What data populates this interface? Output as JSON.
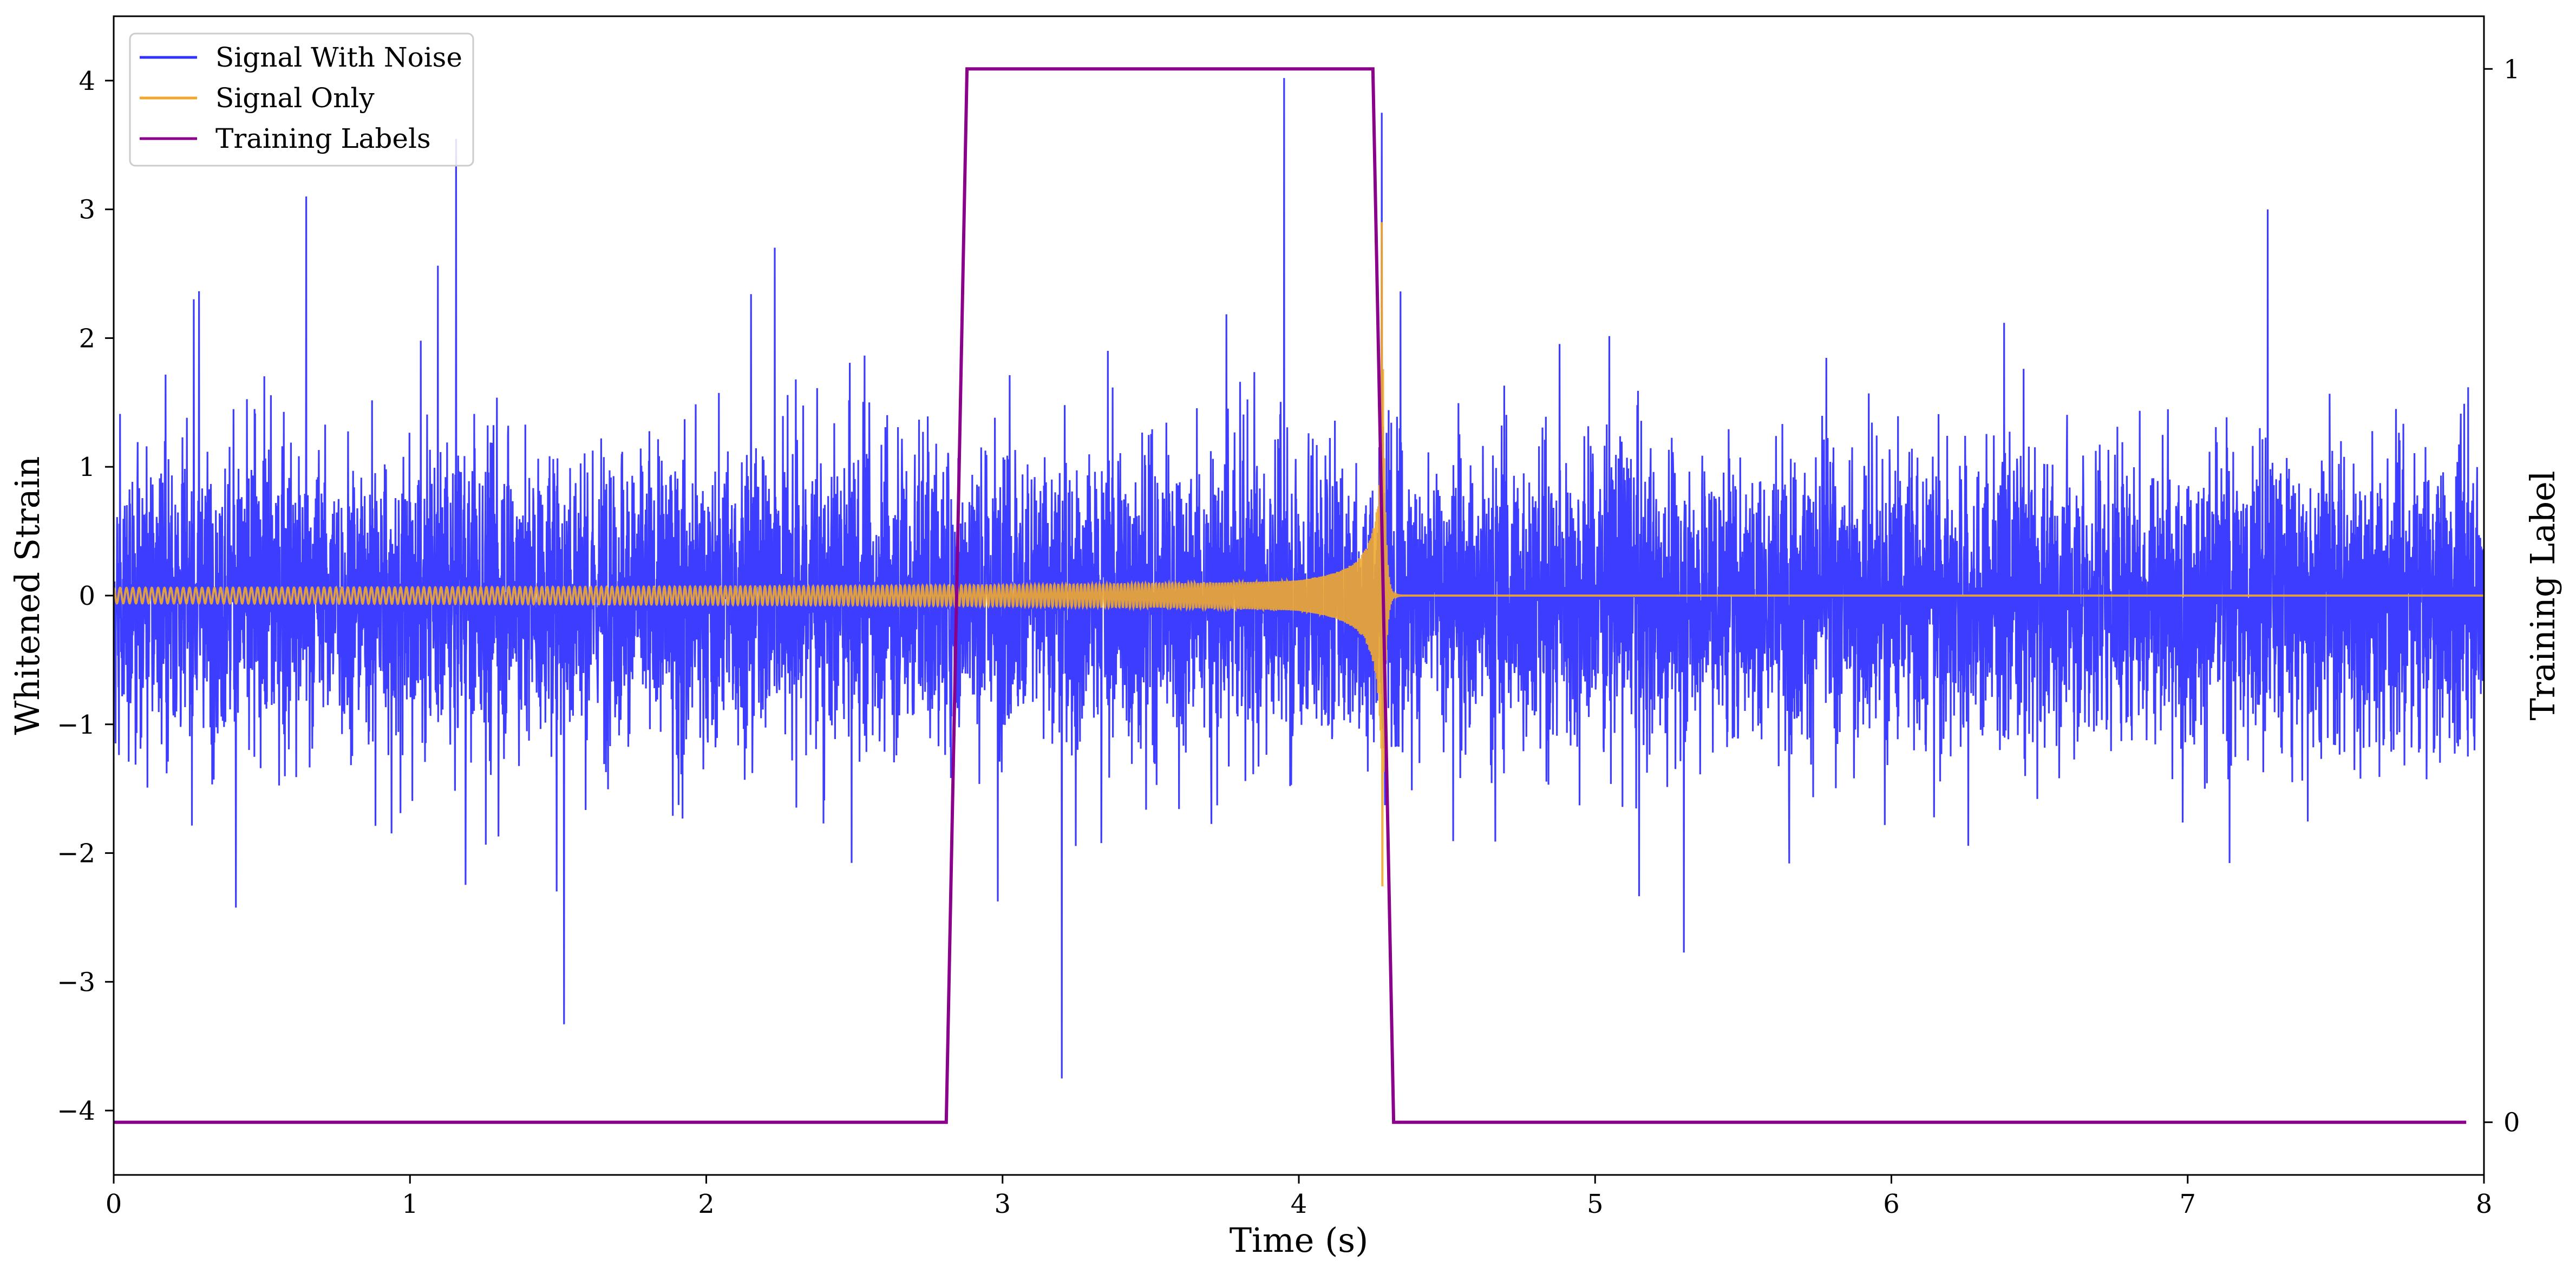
{
  "chart_data": {
    "type": "line",
    "xlabel": "Time (s)",
    "ylabel": "Whitened Strain",
    "y2label": "Training Label",
    "xlim": [
      0,
      8
    ],
    "ylim": [
      -4.5,
      4.5
    ],
    "y2lim": [
      -0.05,
      1.05
    ],
    "xticks": [
      "0",
      "1",
      "2",
      "3",
      "4",
      "5",
      "6",
      "7",
      "8"
    ],
    "yticks": [
      "−4",
      "−3",
      "−2",
      "−1",
      "0",
      "1",
      "2",
      "3",
      "4"
    ],
    "y2ticks": [
      "0",
      "1"
    ],
    "legend_position": "top-left",
    "grid": false,
    "series": [
      {
        "name": "Signal With Noise",
        "color": "#3333ff",
        "axis": "left",
        "description_values": "white noise std ~0.8, range approx -3.75 to 4.0 across 0–8 s",
        "peaks": [
          {
            "x": 0.65,
            "y": 3.1
          },
          {
            "x": 1.52,
            "y": -3.33
          },
          {
            "x": 3.2,
            "y": -3.75
          },
          {
            "x": 3.95,
            "y": 4.02
          },
          {
            "x": 4.28,
            "y": 3.75
          },
          {
            "x": 7.27,
            "y": 3.0
          }
        ]
      },
      {
        "name": "Signal Only",
        "color": "#f0a830",
        "axis": "left",
        "chirp": {
          "t_merger": 4.28,
          "amp_start": 0.06,
          "amp_peak": 2.9,
          "ringdown_end": 4.32
        }
      },
      {
        "name": "Training Labels",
        "color": "#8b008b",
        "axis": "right",
        "points": [
          {
            "x": 0.0,
            "y": 0
          },
          {
            "x": 2.81,
            "y": 0
          },
          {
            "x": 2.88,
            "y": 1
          },
          {
            "x": 4.25,
            "y": 1
          },
          {
            "x": 4.32,
            "y": 0
          },
          {
            "x": 7.94,
            "y": 0
          }
        ]
      }
    ]
  }
}
